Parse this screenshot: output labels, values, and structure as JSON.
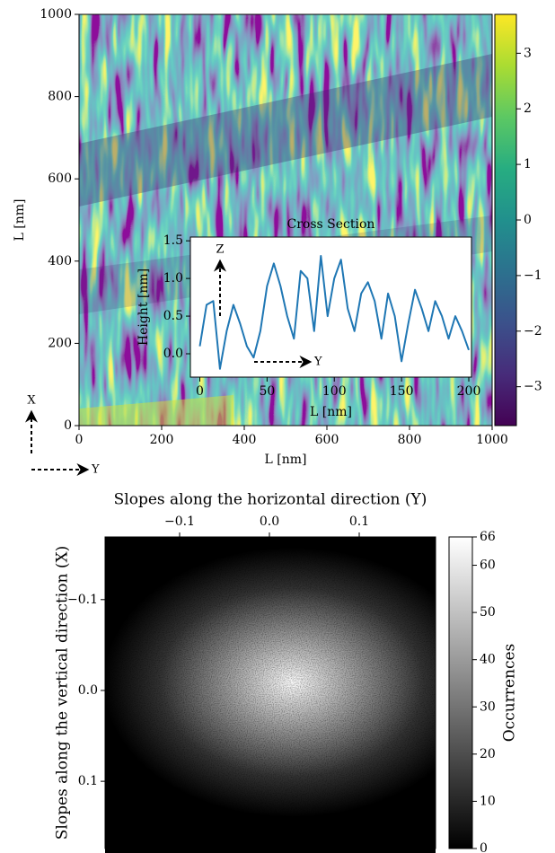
{
  "chart_data": [
    {
      "type": "heatmap",
      "xlabel": "L [nm]",
      "ylabel": "L [nm]",
      "colormap": "viridis",
      "xlim": [
        0,
        1000
      ],
      "ylim": [
        0,
        1000
      ],
      "xticks": [
        0,
        200,
        400,
        600,
        800,
        1000
      ],
      "yticks": [
        0,
        200,
        400,
        600,
        800,
        1000
      ],
      "colorbar": {
        "lim": [
          -3.7,
          3.7
        ],
        "ticks": [
          {
            "value": -3,
            "label": "−3"
          },
          {
            "value": -2,
            "label": "−2"
          },
          {
            "value": -1,
            "label": "−1"
          },
          0,
          1,
          2,
          3
        ]
      },
      "arrows": {
        "vertical": "X",
        "horizontal": "Y"
      }
    },
    {
      "type": "line",
      "title": "Cross Section",
      "xlabel": "L [nm]",
      "ylabel": "Height [nm]",
      "x": [
        0,
        5,
        10,
        15,
        20,
        25,
        30,
        35,
        40,
        45,
        50,
        55,
        60,
        65,
        70,
        75,
        80,
        85,
        90,
        95,
        100,
        105,
        110,
        115,
        120,
        125,
        130,
        135,
        140,
        145,
        150,
        155,
        160,
        165,
        170,
        175,
        180,
        185,
        190,
        195,
        200
      ],
      "series": [
        {
          "color": "#1f77b4",
          "values": [
            0.1,
            0.65,
            0.7,
            -0.2,
            0.3,
            0.65,
            0.4,
            0.1,
            -0.05,
            0.3,
            0.9,
            1.2,
            0.9,
            0.5,
            0.2,
            1.1,
            1.0,
            0.3,
            1.3,
            0.5,
            1.0,
            1.25,
            0.6,
            0.3,
            0.8,
            0.95,
            0.7,
            0.2,
            0.8,
            0.5,
            -0.1,
            0.4,
            0.85,
            0.6,
            0.3,
            0.7,
            0.5,
            0.2,
            0.5,
            0.3,
            0.05
          ]
        }
      ],
      "xlim": [
        -7,
        202
      ],
      "ylim": [
        -0.31,
        1.55
      ],
      "xticks": [
        0,
        50,
        100,
        150,
        200
      ],
      "yticks": [
        {
          "value": 0,
          "label": "0.0"
        },
        0.5,
        {
          "value": 1,
          "label": "1.0"
        },
        1.5
      ],
      "arrows": {
        "vertical": "Z",
        "horizontal": "Y"
      }
    },
    {
      "type": "heatmap",
      "title": "Slopes along the horizontal direction (Y)",
      "ylabel": "Slopes along the vertical direction (X)",
      "colormap": "gray",
      "xlim": [
        -0.183,
        0.185
      ],
      "ylim": [
        0.174,
        -0.169
      ],
      "xticks": [
        {
          "value": -0.1,
          "label": "−0.1"
        },
        {
          "value": 0,
          "label": "0.0"
        },
        0.1
      ],
      "yticks": [
        {
          "value": -0.1,
          "label": "−0.1"
        },
        {
          "value": 0,
          "label": "0.0"
        },
        0.1
      ],
      "colorbar": {
        "label": "Occurrences",
        "lim": [
          0,
          66
        ],
        "ticks": [
          0,
          10,
          20,
          30,
          40,
          50,
          60,
          66
        ]
      }
    }
  ]
}
